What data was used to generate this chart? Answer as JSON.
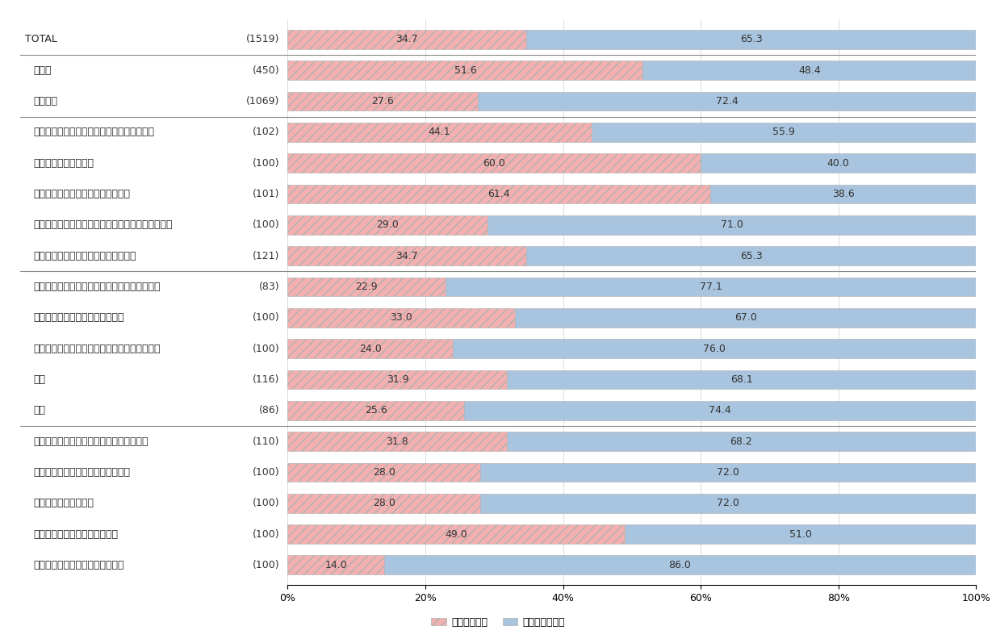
{
  "categories": [
    "TOTAL",
    "大企業",
    "中小企業",
    "ホールキッチン・調理補助（飲食・フード）",
    "接客（ホテル・旅館）",
    "販売・接客（コンビニ・スーパー）",
    "販売・接客（パチンコ・カラオケ・ネットカフェ）",
    "販売・接客（その他小売・サービス）",
    "警備・交通誘導（セキュリティ・設備工事等）",
    "清掃（ビル管理・メンテナンス）",
    "家庭教師・講師・試験監督（教育・学校法人）",
    "介護",
    "保育",
    "事務・データ入力・受付・コールセンター",
    "配送・引越し・ドライバー（陸運）",
    "軽作業（倉庫・物流）",
    "製造ライン・加工（メーカー）",
    "建築・土木作業員（建設・土木）"
  ],
  "ns": [
    1519,
    450,
    1069,
    102,
    100,
    101,
    100,
    121,
    83,
    100,
    100,
    116,
    86,
    110,
    100,
    100,
    100,
    100
  ],
  "hired": [
    34.7,
    51.6,
    27.6,
    44.1,
    60.0,
    61.4,
    29.0,
    34.7,
    22.9,
    33.0,
    24.0,
    31.9,
    25.6,
    31.8,
    28.0,
    28.0,
    49.0,
    14.0
  ],
  "not_hired": [
    65.3,
    48.4,
    72.4,
    55.9,
    40.0,
    38.6,
    71.0,
    65.3,
    77.1,
    67.0,
    76.0,
    68.1,
    74.4,
    68.2,
    72.0,
    72.0,
    51.0,
    86.0
  ],
  "hired_color": "#f4b0b0",
  "not_hired_color": "#a8c4de",
  "separator_after_indices": [
    0,
    2,
    7,
    12
  ],
  "label_fontsize": 9,
  "tick_fontsize": 9,
  "legend_fontsize": 9,
  "bar_height": 0.62,
  "background_color": "#ffffff",
  "legend_hired": "採用している",
  "legend_not_hired": "採用していない",
  "indented": [
    false,
    true,
    true,
    true,
    true,
    true,
    true,
    true,
    true,
    true,
    true,
    true,
    true,
    true,
    true,
    true,
    true,
    true
  ]
}
